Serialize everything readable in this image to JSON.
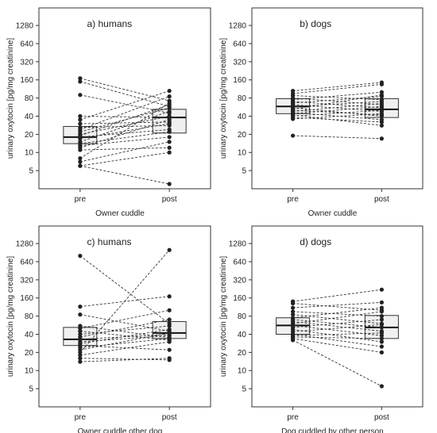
{
  "chart_data": [
    {
      "type": "box-paired-scatter",
      "title": "a) humans",
      "ylabel": "urinary oxytocin [pg/mg creatinine]",
      "xlabel": "Owner cuddle",
      "categories": [
        "pre",
        "post"
      ],
      "y_scale": "log2",
      "yticks": [
        5,
        10,
        20,
        40,
        80,
        160,
        320,
        640,
        1280
      ],
      "ylim": [
        2.5,
        2500
      ],
      "box": {
        "pre": {
          "q1": 14,
          "median": 18,
          "q3": 27
        },
        "post": {
          "q1": 21,
          "median": 38,
          "q3": 52
        }
      },
      "pairs": [
        [
          170,
          72
        ],
        [
          150,
          58
        ],
        [
          90,
          45
        ],
        [
          40,
          38
        ],
        [
          35,
          105
        ],
        [
          30,
          32
        ],
        [
          26,
          28
        ],
        [
          24,
          85
        ],
        [
          22,
          55
        ],
        [
          20,
          40
        ],
        [
          19,
          62
        ],
        [
          18,
          24
        ],
        [
          17,
          30
        ],
        [
          15,
          48
        ],
        [
          14,
          22
        ],
        [
          13,
          18
        ],
        [
          12,
          35
        ],
        [
          11,
          12
        ],
        [
          8,
          66
        ],
        [
          7,
          15
        ],
        [
          6,
          10
        ],
        [
          6,
          3
        ]
      ]
    },
    {
      "type": "box-paired-scatter",
      "title": "b) dogs",
      "ylabel": "urinary oxytocin [pg/mg creatinine]",
      "xlabel": "Owner cuddle",
      "categories": [
        "pre",
        "post"
      ],
      "y_scale": "log2",
      "yticks": [
        5,
        10,
        20,
        40,
        80,
        160,
        320,
        640,
        1280
      ],
      "ylim": [
        2.5,
        2500
      ],
      "box": {
        "pre": {
          "q1": 44,
          "median": 58,
          "q3": 78
        },
        "post": {
          "q1": 38,
          "median": 52,
          "q3": 78
        }
      },
      "pairs": [
        [
          105,
          145
        ],
        [
          95,
          135
        ],
        [
          88,
          75
        ],
        [
          80,
          62
        ],
        [
          75,
          100
        ],
        [
          70,
          55
        ],
        [
          66,
          85
        ],
        [
          62,
          48
        ],
        [
          58,
          70
        ],
        [
          55,
          40
        ],
        [
          52,
          90
        ],
        [
          50,
          42
        ],
        [
          48,
          65
        ],
        [
          46,
          35
        ],
        [
          44,
          58
        ],
        [
          42,
          28
        ],
        [
          40,
          50
        ],
        [
          38,
          32
        ],
        [
          36,
          44
        ],
        [
          19,
          17
        ]
      ]
    },
    {
      "type": "box-paired-scatter",
      "title": "c) humans",
      "ylabel": "urinary oxytocin [pg/mg creatinine]",
      "xlabel": "Owner cuddle other dog",
      "categories": [
        "pre",
        "post"
      ],
      "y_scale": "log2",
      "yticks": [
        5,
        10,
        20,
        40,
        80,
        160,
        320,
        640,
        1280
      ],
      "ylim": [
        2.5,
        2500
      ],
      "box": {
        "pre": {
          "q1": 26,
          "median": 33,
          "q3": 52
        },
        "post": {
          "q1": 34,
          "median": 42,
          "q3": 65
        }
      },
      "pairs": [
        [
          800,
          60
        ],
        [
          115,
          170
        ],
        [
          85,
          45
        ],
        [
          55,
          35
        ],
        [
          50,
          100
        ],
        [
          45,
          32
        ],
        [
          40,
          55
        ],
        [
          36,
          70
        ],
        [
          33,
          40
        ],
        [
          30,
          38
        ],
        [
          28,
          48
        ],
        [
          26,
          22
        ],
        [
          24,
          34
        ],
        [
          22,
          42
        ],
        [
          20,
          1000
        ],
        [
          18,
          30
        ],
        [
          16,
          15
        ],
        [
          14,
          16
        ]
      ]
    },
    {
      "type": "box-paired-scatter",
      "title": "d) dogs",
      "ylabel": "urinary oxytocin [pg/mg creatinine]",
      "xlabel": "Dog cuddled by other person",
      "categories": [
        "pre",
        "post"
      ],
      "y_scale": "log2",
      "yticks": [
        5,
        10,
        20,
        40,
        80,
        160,
        320,
        640,
        1280
      ],
      "ylim": [
        2.5,
        2500
      ],
      "box": {
        "pre": {
          "q1": 40,
          "median": 56,
          "q3": 75
        },
        "post": {
          "q1": 34,
          "median": 52,
          "q3": 82
        }
      },
      "pairs": [
        [
          140,
          220
        ],
        [
          130,
          100
        ],
        [
          110,
          135
        ],
        [
          95,
          80
        ],
        [
          85,
          60
        ],
        [
          75,
          110
        ],
        [
          70,
          52
        ],
        [
          65,
          45
        ],
        [
          60,
          95
        ],
        [
          56,
          38
        ],
        [
          52,
          70
        ],
        [
          48,
          30
        ],
        [
          44,
          58
        ],
        [
          40,
          25
        ],
        [
          38,
          42
        ],
        [
          36,
          34
        ],
        [
          34,
          20
        ],
        [
          32,
          5.5
        ]
      ]
    }
  ]
}
